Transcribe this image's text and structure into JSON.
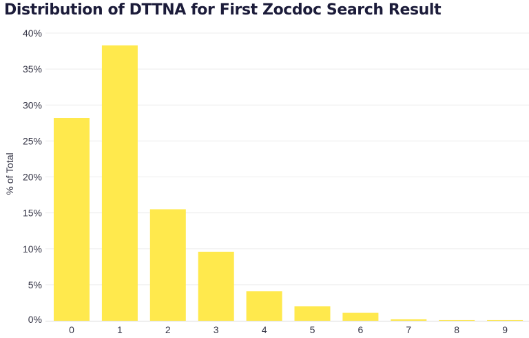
{
  "chart_data": {
    "type": "bar",
    "title": "Distribution of DTTNA for First Zocdoc Search Result",
    "xlabel": "",
    "ylabel": "% of Total",
    "categories": [
      "0",
      "1",
      "2",
      "3",
      "4",
      "5",
      "6",
      "7",
      "8",
      "9"
    ],
    "values": [
      28.2,
      38.3,
      15.5,
      9.6,
      4.1,
      2.0,
      1.1,
      0.2,
      0.1,
      0.1
    ],
    "ylim": [
      0,
      40
    ],
    "yticks": [
      0,
      5,
      10,
      15,
      20,
      25,
      30,
      35,
      40
    ],
    "ytick_labels": [
      "0%",
      "5%",
      "10%",
      "15%",
      "20%",
      "25%",
      "30%",
      "35%",
      "40%"
    ],
    "bar_color": "#ffe94d",
    "grid": true,
    "legend": "none"
  }
}
